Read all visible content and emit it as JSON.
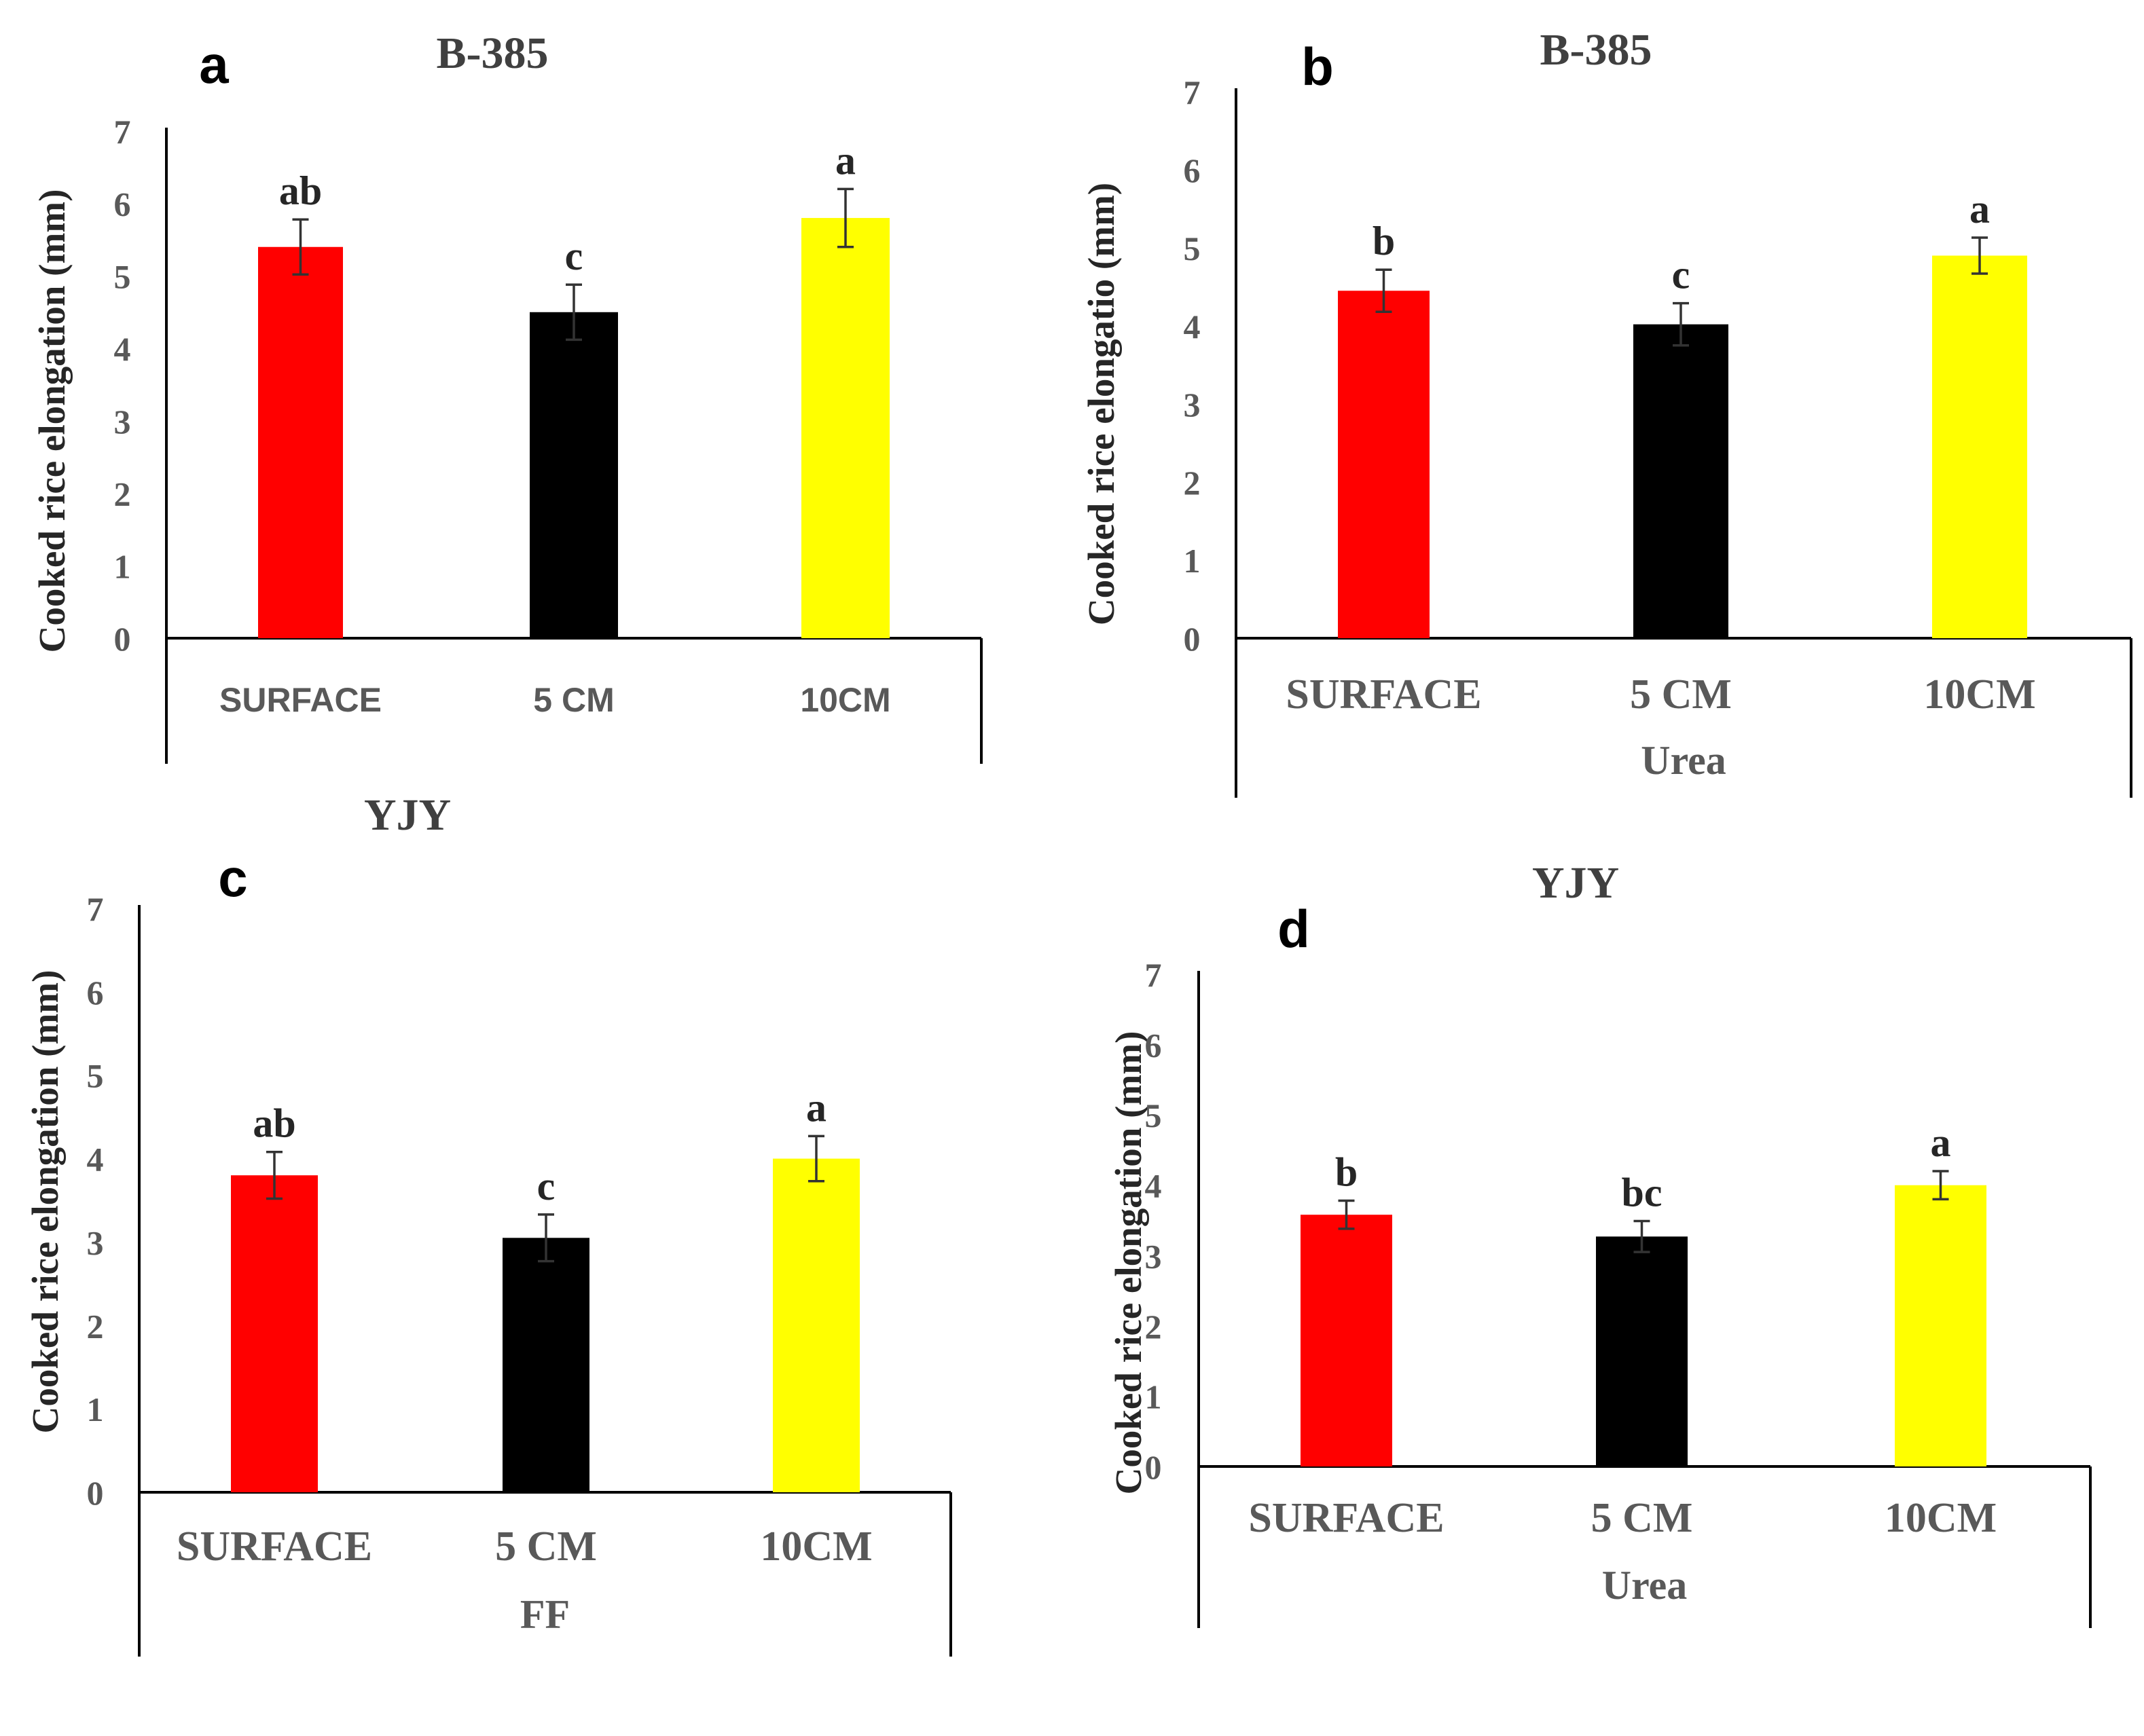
{
  "chart_data": [
    {
      "panel": "a",
      "type": "bar",
      "title": "B-385",
      "xlabel": "",
      "ylabel": "Cooked rice elongation (mm)",
      "ylim": [
        0,
        7
      ],
      "yticks": [
        0,
        1,
        2,
        3,
        4,
        5,
        6,
        7
      ],
      "categories": [
        "SURFACE",
        "5 CM",
        "10CM"
      ],
      "values": [
        5.4,
        4.5,
        5.8
      ],
      "errors": [
        0.38,
        0.38,
        0.4
      ],
      "letters": [
        "ab",
        "c",
        "a"
      ],
      "colors": [
        "#ff0000",
        "#000000",
        "#ffff00"
      ]
    },
    {
      "panel": "b",
      "type": "bar",
      "title": "B-385",
      "xlabel": "Urea",
      "ylabel": "Cooked rice elongatio (mm)",
      "ylim": [
        0,
        7
      ],
      "yticks": [
        0,
        1,
        2,
        3,
        4,
        5,
        6,
        7
      ],
      "categories": [
        "SURFACE",
        "5 CM",
        "10CM"
      ],
      "values": [
        4.45,
        4.02,
        4.9
      ],
      "errors": [
        0.27,
        0.27,
        0.23
      ],
      "letters": [
        "b",
        "c",
        "a"
      ],
      "colors": [
        "#ff0000",
        "#000000",
        "#ffff00"
      ]
    },
    {
      "panel": "c",
      "type": "bar",
      "title": "YJY",
      "xlabel": "FF",
      "ylabel": "Cooked rice elongation (mm)",
      "ylim": [
        0,
        7
      ],
      "yticks": [
        0,
        1,
        2,
        3,
        4,
        5,
        6,
        7
      ],
      "categories": [
        "SURFACE",
        "5 CM",
        "10CM"
      ],
      "values": [
        3.8,
        3.05,
        4.0
      ],
      "errors": [
        0.28,
        0.28,
        0.27
      ],
      "letters": [
        "ab",
        "c",
        "a"
      ],
      "colors": [
        "#ff0000",
        "#000000",
        "#ffff00"
      ]
    },
    {
      "panel": "d",
      "type": "bar",
      "title": "YJY",
      "xlabel": "Urea",
      "ylabel": "Cooked rice elongation (mm)",
      "ylim": [
        0,
        7
      ],
      "yticks": [
        0,
        1,
        2,
        3,
        4,
        5,
        6,
        7
      ],
      "categories": [
        "SURFACE",
        "5 CM",
        "10CM"
      ],
      "values": [
        3.58,
        3.27,
        4.0
      ],
      "errors": [
        0.2,
        0.22,
        0.2
      ],
      "letters": [
        "b",
        "bc",
        "a"
      ],
      "colors": [
        "#ff0000",
        "#000000",
        "#ffff00"
      ]
    }
  ]
}
